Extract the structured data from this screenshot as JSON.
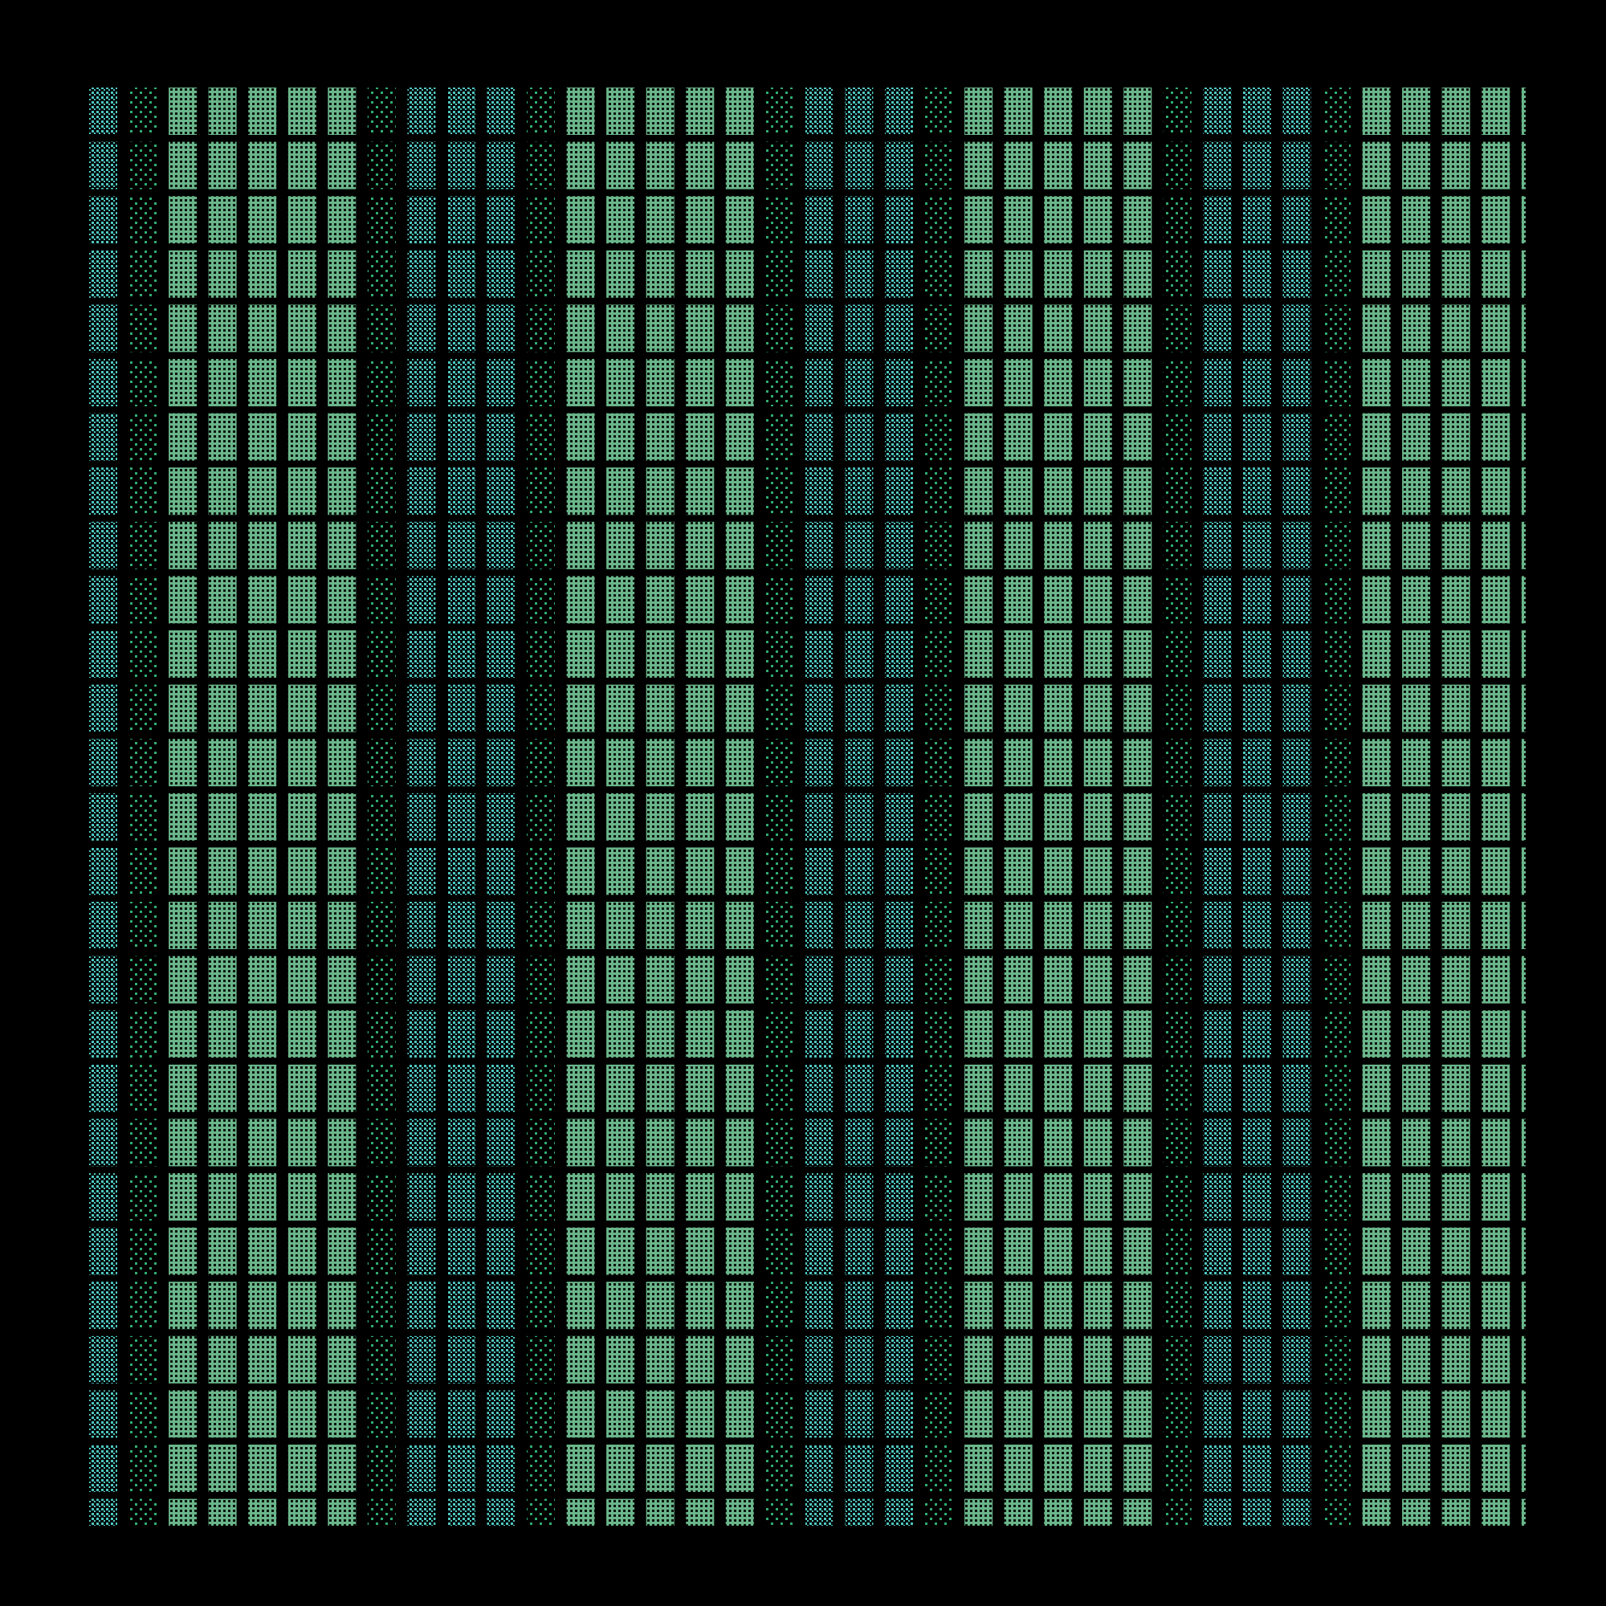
{
  "background": "#000000",
  "colors": {
    "teal": "#4fc7c0",
    "sparse": "#2fae72",
    "bright": "#6ab58a",
    "hole": "#0a140e"
  },
  "column_pattern": [
    "teal",
    "sparse",
    "bright",
    "bright",
    "bright",
    "bright",
    "bright",
    "sparse",
    "teal",
    "teal"
  ]
}
